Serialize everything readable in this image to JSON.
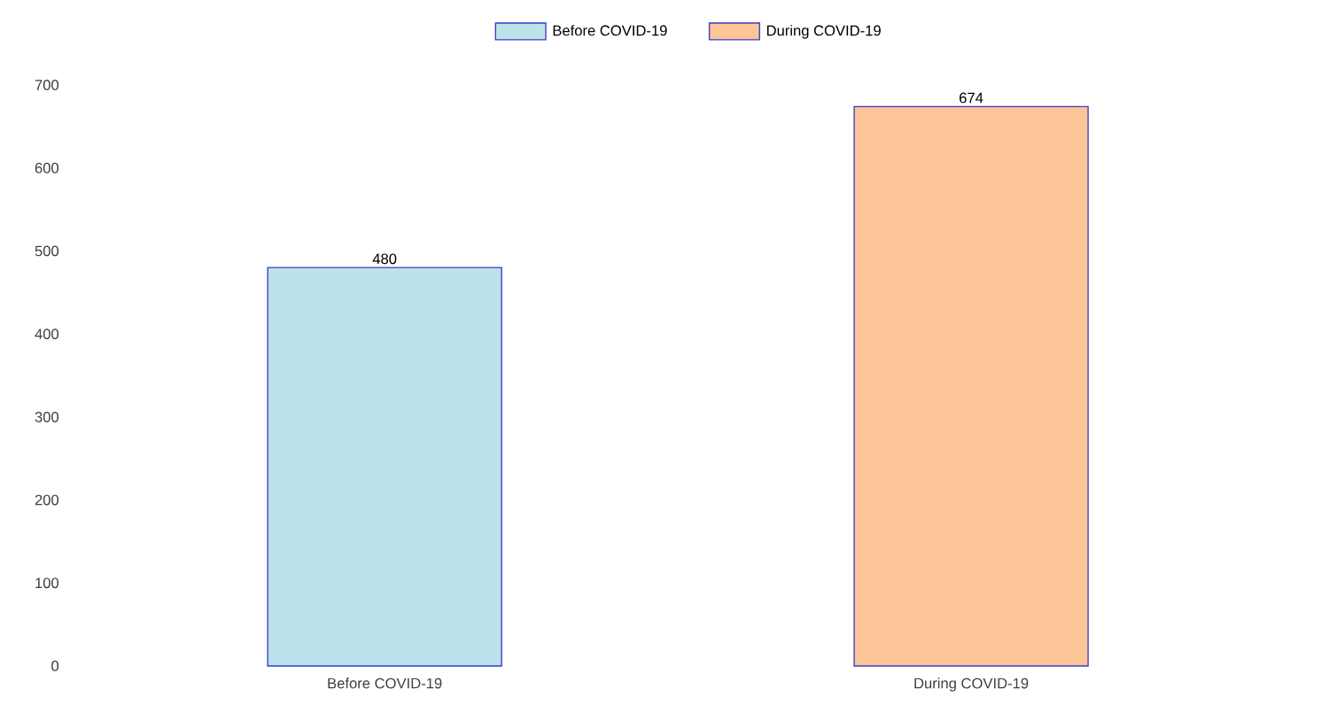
{
  "chart_data": {
    "type": "bar",
    "categories": [
      "Before COVID-19",
      "During COVID-19"
    ],
    "series": [
      {
        "name": "Before COVID-19",
        "color": "#bce2eb",
        "values": [
          480,
          null
        ]
      },
      {
        "name": "During COVID-19",
        "color": "#fcc597",
        "values": [
          null,
          674
        ]
      }
    ],
    "ylim": [
      0,
      700
    ],
    "yticks": [
      0,
      100,
      200,
      300,
      400,
      500,
      600,
      700
    ],
    "data_labels": true,
    "legend": "top"
  }
}
